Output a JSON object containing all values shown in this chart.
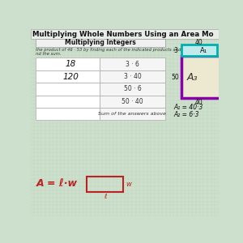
{
  "title": "Multiplying Whole Numbers Using an Area Mo",
  "subtitle": "Multiplying Integers",
  "instruction_line1": "the product of 46 · 53 by finding each of the indicated products and",
  "instruction_line2": "nd the sum.",
  "table_rows": [
    {
      "left": "18",
      "right": "3 · 6"
    },
    {
      "left": "120",
      "right": "3 · 40"
    },
    {
      "left": "",
      "right": "50 · 6"
    },
    {
      "left": "",
      "right": "50 · 40"
    },
    {
      "left": "",
      "right": "Sum of the answers above"
    }
  ],
  "bg_color": "#cde0cd",
  "grid_color_h": "#b8d0b8",
  "grid_color_v": "#b8d0b8",
  "title_bg": "#e8ede8",
  "subtitle_bg": "#f0f0f0",
  "cell_left_bg": "#ffffff",
  "cell_right_bg": "#f5f5f5",
  "cyan_color": "#00b0b0",
  "cyan_fill": "#c0eaec",
  "purple_color": "#8800aa",
  "purple_fill": "#ede8d0",
  "red_color": "#bb2222",
  "text_dark": "#111111",
  "text_mid": "#333333",
  "text_italic_color": "#222222",
  "label_40_top": "40",
  "label_3": "3",
  "label_50": "50",
  "label_40_bot": "40",
  "label_A1": "A₁",
  "label_A3": "A₃",
  "eq_A1": "A₁ = 40·3",
  "eq_A2": "A₂ = 6·3",
  "formula": "A = ℓ·w",
  "lbl_w": "w",
  "lbl_l": "ℓ"
}
